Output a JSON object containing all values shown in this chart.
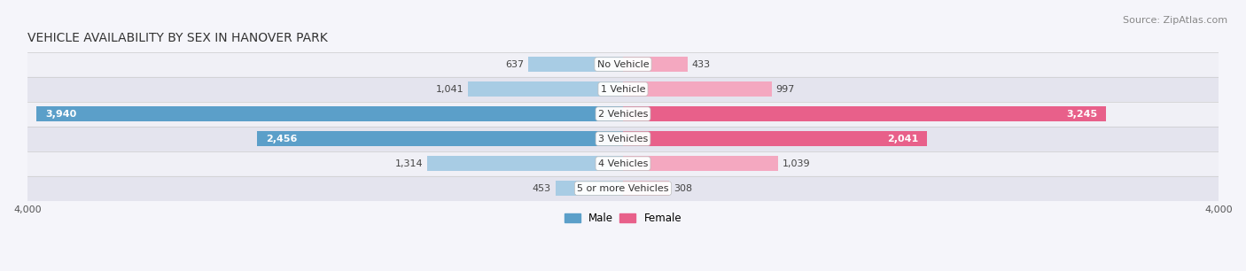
{
  "title": "VEHICLE AVAILABILITY BY SEX IN HANOVER PARK",
  "source": "Source: ZipAtlas.com",
  "categories": [
    "No Vehicle",
    "1 Vehicle",
    "2 Vehicles",
    "3 Vehicles",
    "4 Vehicles",
    "5 or more Vehicles"
  ],
  "male_values": [
    637,
    1041,
    3940,
    2456,
    1314,
    453
  ],
  "female_values": [
    433,
    997,
    3245,
    2041,
    1039,
    308
  ],
  "male_color_light": "#a8cce4",
  "female_color_light": "#f4a8c0",
  "male_color_strong": "#5b9fc9",
  "female_color_strong": "#e8608a",
  "row_color_light": "#f0f0f6",
  "row_color_dark": "#e4e4ee",
  "x_max": 4000,
  "title_fontsize": 10,
  "source_fontsize": 8,
  "value_fontsize": 8,
  "category_fontsize": 8,
  "bar_height": 0.62,
  "legend_male": "Male",
  "legend_female": "Female",
  "inside_label_threshold": 0.45
}
